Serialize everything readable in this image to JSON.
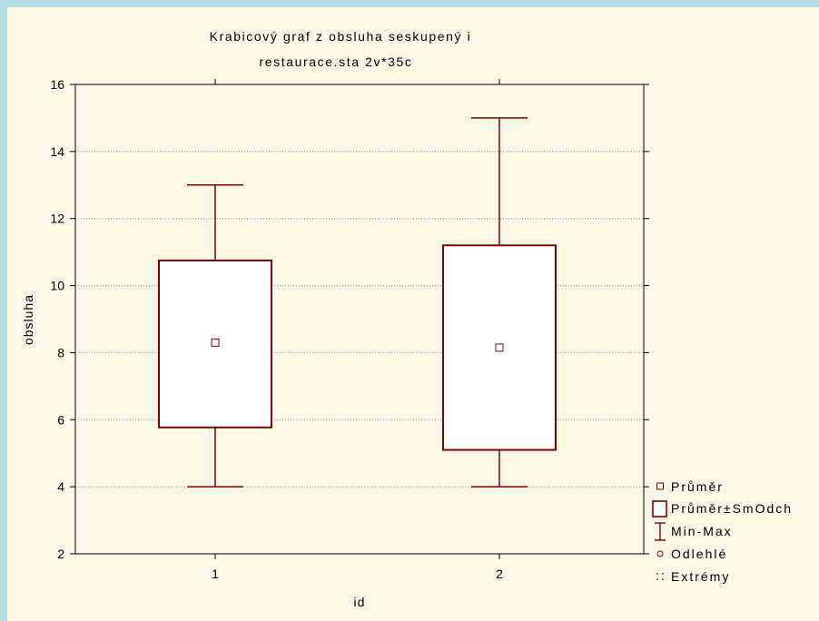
{
  "chart_data": {
    "type": "box",
    "title": [
      "Krabicový graf z obsluha seskupený i",
      "restaurace.sta 2v*35c"
    ],
    "xlabel": "id",
    "ylabel": "obsluha",
    "ylim": [
      2,
      16
    ],
    "yticks": [
      2,
      4,
      6,
      8,
      10,
      12,
      14,
      16
    ],
    "categories": [
      "1",
      "2"
    ],
    "boxes": [
      {
        "category": "1",
        "mean": 8.3,
        "box_low": 5.77,
        "box_high": 10.75,
        "min": 4,
        "max": 13
      },
      {
        "category": "2",
        "mean": 8.15,
        "box_low": 5.1,
        "box_high": 11.2,
        "min": 4,
        "max": 15
      }
    ],
    "grid": true,
    "grid_style": "dotted",
    "legend_position": "bottom-right",
    "legend": [
      {
        "symbol": "mean-marker",
        "label": "Průměr"
      },
      {
        "symbol": "box-marker",
        "label": "Průměr±SmOdch"
      },
      {
        "symbol": "whisker-marker",
        "label": "Min-Max"
      },
      {
        "symbol": "outlier-marker",
        "label": "Odlehlé"
      },
      {
        "symbol": "extreme-marker",
        "label": "Extrémy"
      }
    ],
    "colors": {
      "series": "#800000",
      "outer_background": "#b6dde4",
      "plot_background": "#fdf7e6",
      "grid": "#8c8c8c"
    }
  }
}
